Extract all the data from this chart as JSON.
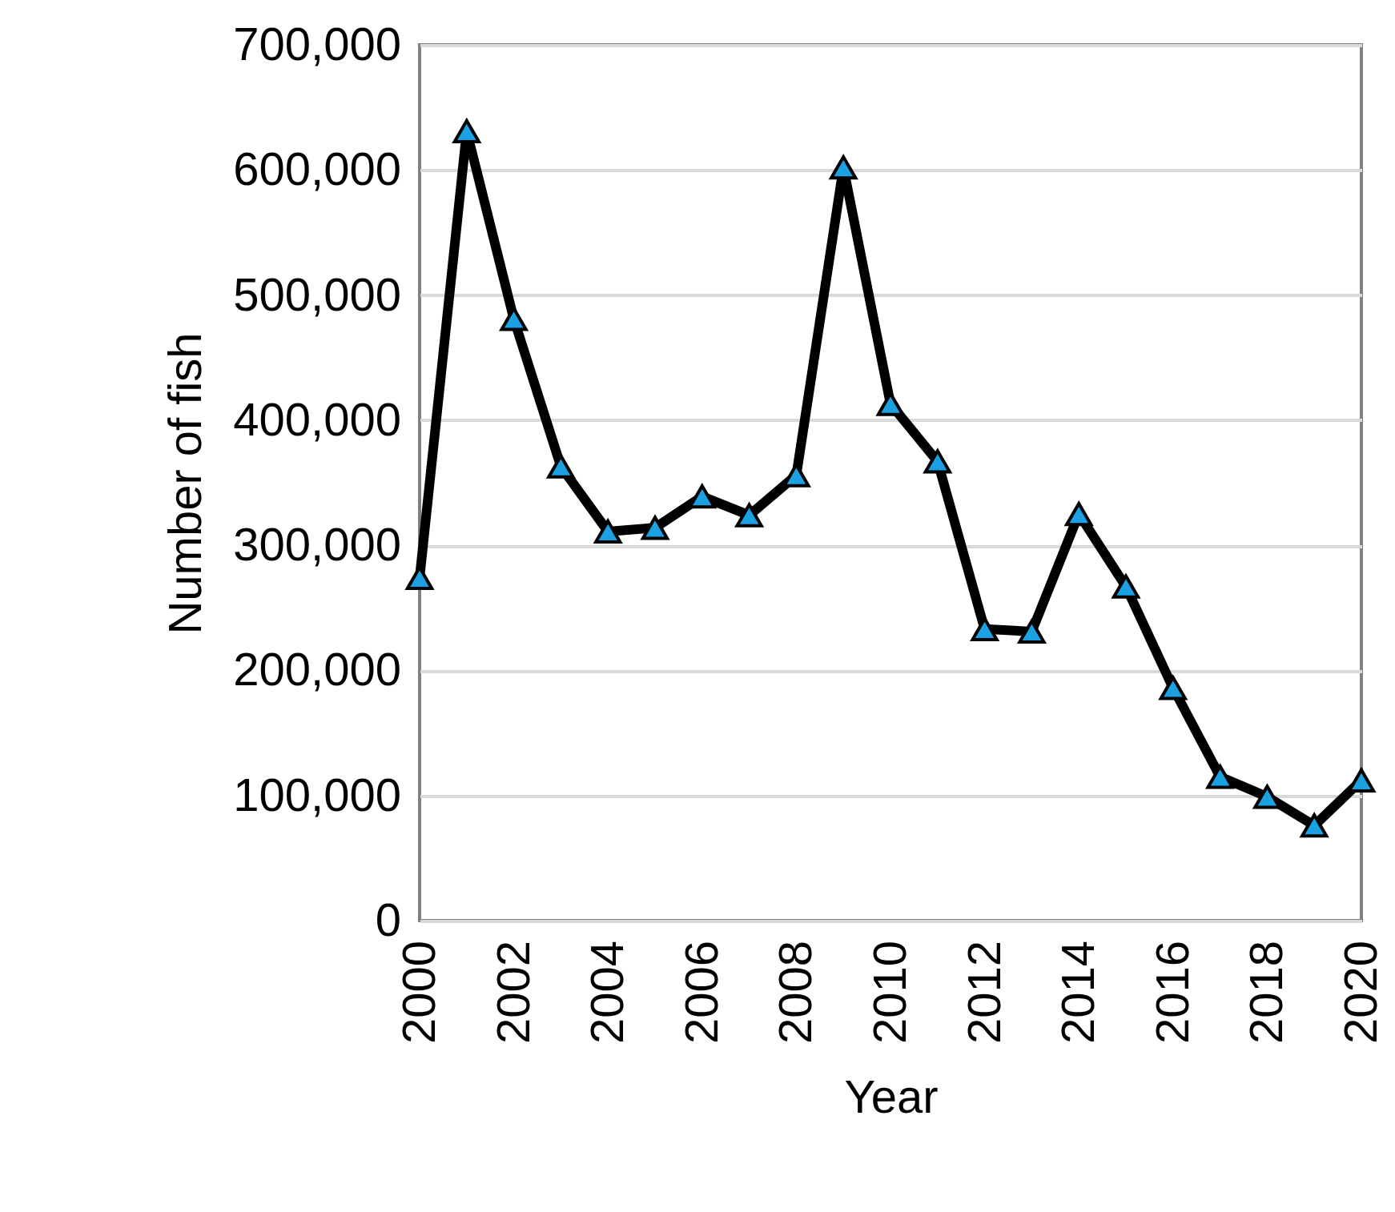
{
  "chart_data": {
    "type": "line",
    "xlabel": "Year",
    "ylabel": "Number of fish",
    "x": [
      2000,
      2001,
      2002,
      2003,
      2004,
      2005,
      2006,
      2007,
      2008,
      2009,
      2010,
      2011,
      2012,
      2013,
      2014,
      2015,
      2016,
      2017,
      2018,
      2019,
      2020
    ],
    "series": [
      {
        "color": "#000000",
        "values": [
          274000,
          631000,
          481000,
          363000,
          311000,
          314000,
          339000,
          324000,
          356000,
          602000,
          413000,
          367000,
          233000,
          231000,
          325000,
          267000,
          186000,
          115000,
          99000,
          76000,
          112000
        ]
      }
    ],
    "xlim": [
      2000,
      2020
    ],
    "xticks": [
      2000,
      2002,
      2004,
      2006,
      2008,
      2010,
      2012,
      2014,
      2016,
      2018,
      2020
    ],
    "ylim": [
      0,
      700000
    ],
    "yticks": [
      {
        "value": 0,
        "label": "0"
      },
      {
        "value": 100000,
        "label": "100,000"
      },
      {
        "value": 200000,
        "label": "200,000"
      },
      {
        "value": 300000,
        "label": "300,000"
      },
      {
        "value": 400000,
        "label": "400,000"
      },
      {
        "value": 500000,
        "label": "500,000"
      },
      {
        "value": 600000,
        "label": "600,000"
      },
      {
        "value": 700000,
        "label": "700,000"
      }
    ],
    "grid": "y",
    "marker": "triangle",
    "line_style": "solid",
    "legend": false
  }
}
